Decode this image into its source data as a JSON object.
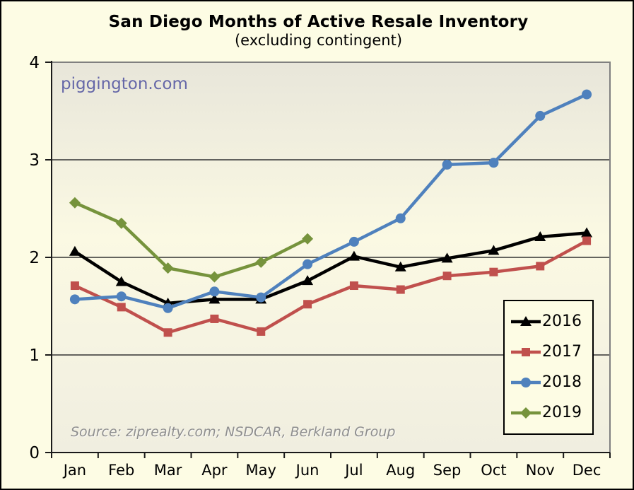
{
  "title": "San Diego Months of Active Resale Inventory",
  "subtitle": "(excluding contingent)",
  "watermark": "piggington.com",
  "source_note": "Source: ziprealty.com; NSDCAR, Berkland Group",
  "colors": {
    "page_bg": "#FDFCE4",
    "plot_bg_top": "#E8E6DA",
    "plot_bg_mid": "#FBF9E3",
    "plot_bg_bottom": "#F0EEE0",
    "plot_border": "#808080",
    "axis": "#1A1A1A",
    "gridline": "#333333",
    "tick_label": "#000000",
    "watermark": "#6567A8",
    "source": "#8F8F8F"
  },
  "chart_data": {
    "type": "line",
    "title": "San Diego Months of Active Resale Inventory",
    "subtitle": "(excluding contingent)",
    "xlabel": "",
    "ylabel": "",
    "ylim": [
      0,
      4
    ],
    "yticks": [
      0,
      1,
      2,
      3,
      4
    ],
    "grid": true,
    "legend_position": "inside-bottom-right",
    "categories": [
      "Jan",
      "Feb",
      "Mar",
      "Apr",
      "May",
      "Jun",
      "Jul",
      "Aug",
      "Sep",
      "Oct",
      "Nov",
      "Dec"
    ],
    "series": [
      {
        "name": "2016",
        "color": "#000000",
        "marker": "triangle",
        "values": [
          2.06,
          1.75,
          1.53,
          1.57,
          1.57,
          1.76,
          2.01,
          1.9,
          1.99,
          2.07,
          2.21,
          2.25
        ]
      },
      {
        "name": "2017",
        "color": "#C0504D",
        "marker": "square",
        "values": [
          1.71,
          1.49,
          1.23,
          1.37,
          1.24,
          1.52,
          1.71,
          1.67,
          1.81,
          1.85,
          1.91,
          2.17
        ]
      },
      {
        "name": "2018",
        "color": "#4F81BD",
        "marker": "circle",
        "values": [
          1.57,
          1.6,
          1.48,
          1.65,
          1.59,
          1.93,
          2.16,
          2.4,
          2.95,
          2.97,
          3.45,
          3.67
        ]
      },
      {
        "name": "2019",
        "color": "#76933C",
        "marker": "diamond",
        "values": [
          2.56,
          2.35,
          1.89,
          1.8,
          1.95,
          2.19
        ]
      }
    ]
  }
}
